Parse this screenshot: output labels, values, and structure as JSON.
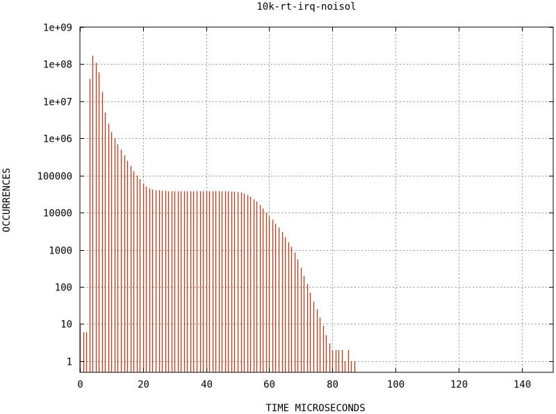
{
  "chart_data": {
    "type": "bar",
    "title": "10k-rt-irq-noisol",
    "xlabel": "TIME MICROSECONDS",
    "ylabel": "OCCURRENCES",
    "xlim": [
      0,
      150
    ],
    "ylim": [
      0.5,
      1000000000
    ],
    "yscale": "log",
    "grid": true,
    "xticks": [
      0,
      20,
      40,
      60,
      80,
      100,
      120,
      140
    ],
    "xtick_labels": [
      "0",
      "20",
      "40",
      "60",
      "80",
      "100",
      "120",
      "140"
    ],
    "yticks": [
      1,
      10,
      100,
      1000,
      10000,
      100000,
      1000000,
      10000000,
      100000000,
      1000000000
    ],
    "ytick_labels": [
      "1",
      "10",
      "100",
      "1000",
      "10000",
      "100000",
      "1e+06",
      "1e+07",
      "1e+08",
      "1e+09"
    ],
    "bar_color": "#cc3311",
    "series": [
      {
        "x": [
          0,
          1,
          2,
          3,
          4,
          5,
          6,
          7,
          8,
          9,
          10,
          11,
          12,
          13,
          14,
          15,
          16,
          17,
          18,
          19,
          20,
          21,
          22,
          23,
          24,
          25,
          26,
          27,
          28,
          29,
          30,
          31,
          32,
          33,
          34,
          35,
          36,
          37,
          38,
          39,
          40,
          41,
          42,
          43,
          44,
          45,
          46,
          47,
          48,
          49,
          50,
          51,
          52,
          53,
          54,
          55,
          56,
          57,
          58,
          59,
          60,
          61,
          62,
          63,
          64,
          65,
          66,
          67,
          68,
          69,
          70,
          71,
          72,
          73,
          74,
          75,
          76,
          77,
          78,
          79,
          80,
          81,
          82,
          83,
          84,
          85,
          86,
          87
        ],
        "values": [
          10,
          6,
          6,
          40000000,
          170000000,
          110000000,
          60000000,
          18000000,
          5000000,
          2500000,
          1500000,
          1000000,
          700000,
          500000,
          350000,
          250000,
          180000,
          130000,
          100000,
          80000,
          60000,
          50000,
          45000,
          42000,
          40000,
          40000,
          39000,
          39000,
          38000,
          38000,
          38000,
          38000,
          38000,
          38000,
          38000,
          38000,
          38000,
          38000,
          38000,
          38000,
          38000,
          38000,
          38000,
          38000,
          38000,
          38000,
          38000,
          38000,
          37000,
          37000,
          36000,
          35000,
          33000,
          30000,
          27000,
          23000,
          20000,
          16000,
          13000,
          10000,
          8000,
          6500,
          5000,
          4000,
          3000,
          2200,
          1600,
          1200,
          850,
          550,
          330,
          200,
          120,
          70,
          40,
          25,
          15,
          9,
          5,
          3,
          2,
          2,
          2,
          2,
          1,
          2,
          1,
          1
        ]
      }
    ]
  }
}
